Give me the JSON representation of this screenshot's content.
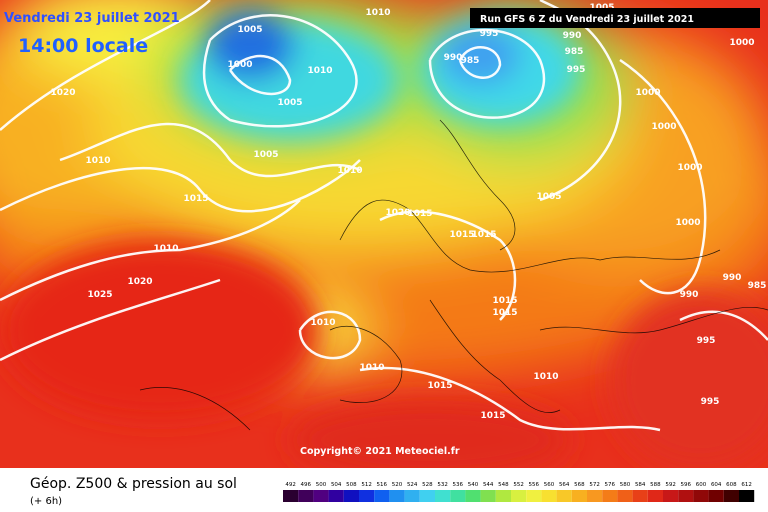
{
  "header": {
    "date": "Vendredi 23 juillet 2021",
    "time": "14:00 locale",
    "run": "Run GFS 6 Z du Vendredi 23 juillet 2021"
  },
  "footer": {
    "title": "Géop. Z500 & pression au sol",
    "subtitle": "(+ 6h)",
    "copyright": "Copyright© 2021 Meteociel.fr"
  },
  "isobar_labels": [
    "1010",
    "1005",
    "1000",
    "1010",
    "1005",
    "1005",
    "1010",
    "1020",
    "1010",
    "1015",
    "1010",
    "1020",
    "1025",
    "1010",
    "1020",
    "1015",
    "1015",
    "1015",
    "1015",
    "1015",
    "1010",
    "1015",
    "1015",
    "1010",
    "1005",
    "995",
    "990",
    "985",
    "995",
    "990",
    "985",
    "1000",
    "1000",
    "1000",
    "1000",
    "1000",
    "1005",
    "990",
    "990",
    "985",
    "995",
    "995"
  ],
  "colorbar_labels": [
    492,
    496,
    500,
    504,
    508,
    512,
    516,
    520,
    524,
    528,
    532,
    536,
    540,
    544,
    548,
    552,
    556,
    560,
    564,
    568,
    572,
    576,
    580,
    584,
    588,
    592,
    596,
    600,
    604,
    608,
    612
  ]
}
